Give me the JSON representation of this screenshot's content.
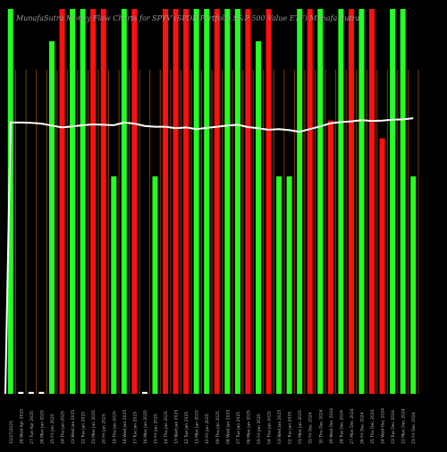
{
  "chart_data": {
    "type": "bar",
    "title": "MunafaSutra Money Flow Charts for SPYV (SPDR Portfolio S&P 500 Value ETF) Munafa Sutra",
    "ylim": [
      0,
      100
    ],
    "grid": false,
    "x_labels": [
      "11/27/2025",
      "28 Wed Apr 2025",
      "27 Tue Apr 2025",
      "26 Mon Jan 2025",
      "25 Fri Jan 2025",
      "24 Thu Jan 2025",
      "23 Wed Jan 2025",
      "22 Tue Jan 2025",
      "21 Mon Jan 2025",
      "20 Fri Jan 2025",
      "19 Thu Jan 2025",
      "18 Wed Jan 2025",
      "17 Tue Jan 2025",
      "16 Mon Jan 2025",
      "15 Fri Jan 2025",
      "14 Thu Jan 2025",
      "13 Wed Jan 2025",
      "12 Tue Jan 2025",
      "11 Mon Jan 2025",
      "10 Fri Jan 2025",
      "09 Thu Jan 2025",
      "08 Wed Jan 2025",
      "07 Tue Jan 2025",
      "06 Mon Jan 2025",
      "05 Fri Jan 2025",
      "04 Thu Jan 2025",
      "03 Wed Jan 2025",
      "02 Tue Jan 2025",
      "01 Mon Jan 2025",
      "31 Fri Dec 2024",
      "30 Thu Dec 2024",
      "29 Wed Dec 2024",
      "28 Tue Dec 2024",
      "27 Mon Dec 2024",
      "26 Fri Dec 2024",
      "25 Thu Dec 2024",
      "24 Wed Dec 2024",
      "23 Tue Dec 2024",
      "22 Mon Dec 2024",
      "21 Fri Dec 2024"
    ],
    "colors": [
      "green",
      "white",
      "white",
      "white",
      "green",
      "red",
      "green",
      "green",
      "red",
      "red",
      "green",
      "green",
      "red",
      "white",
      "green",
      "red",
      "red",
      "red",
      "green",
      "green",
      "red",
      "green",
      "green",
      "red",
      "green",
      "red",
      "green",
      "green",
      "green",
      "red",
      "green",
      "red",
      "green",
      "red",
      "green",
      "red",
      "red",
      "green",
      "green",
      "green"
    ],
    "values": [
      100,
      0.5,
      0.5,
      0.5,
      91.6,
      100,
      100,
      100,
      100,
      100,
      56.5,
      100,
      100,
      0.5,
      56.5,
      100,
      100,
      100,
      100,
      100,
      100,
      100,
      100,
      100,
      91.6,
      100,
      56.5,
      56.5,
      100,
      100,
      100,
      71,
      100,
      100,
      100,
      100,
      66.4,
      100,
      100,
      56.5
    ],
    "line_values": [
      70.5,
      70.5,
      70.4,
      70.2,
      69.7,
      69.2,
      69.5,
      69.8,
      70.0,
      69.9,
      69.8,
      70.5,
      70.2,
      69.6,
      69.4,
      69.4,
      69.0,
      69.2,
      68.8,
      69.1,
      69.4,
      69.7,
      69.9,
      69.3,
      69.0,
      68.6,
      68.8,
      68.5,
      68.1,
      68.8,
      69.5,
      70.3,
      70.6,
      70.8,
      71.1,
      70.9,
      71.0,
      71.2,
      71.3,
      71.6
    ]
  },
  "palette": {
    "background": "#000000",
    "green": "#22ff22",
    "red": "#ff1010",
    "white": "#ffffff",
    "separator": "#7a4000",
    "line": "#ffffff",
    "label": "#b8b8b8",
    "title": "#9a9a9a"
  }
}
